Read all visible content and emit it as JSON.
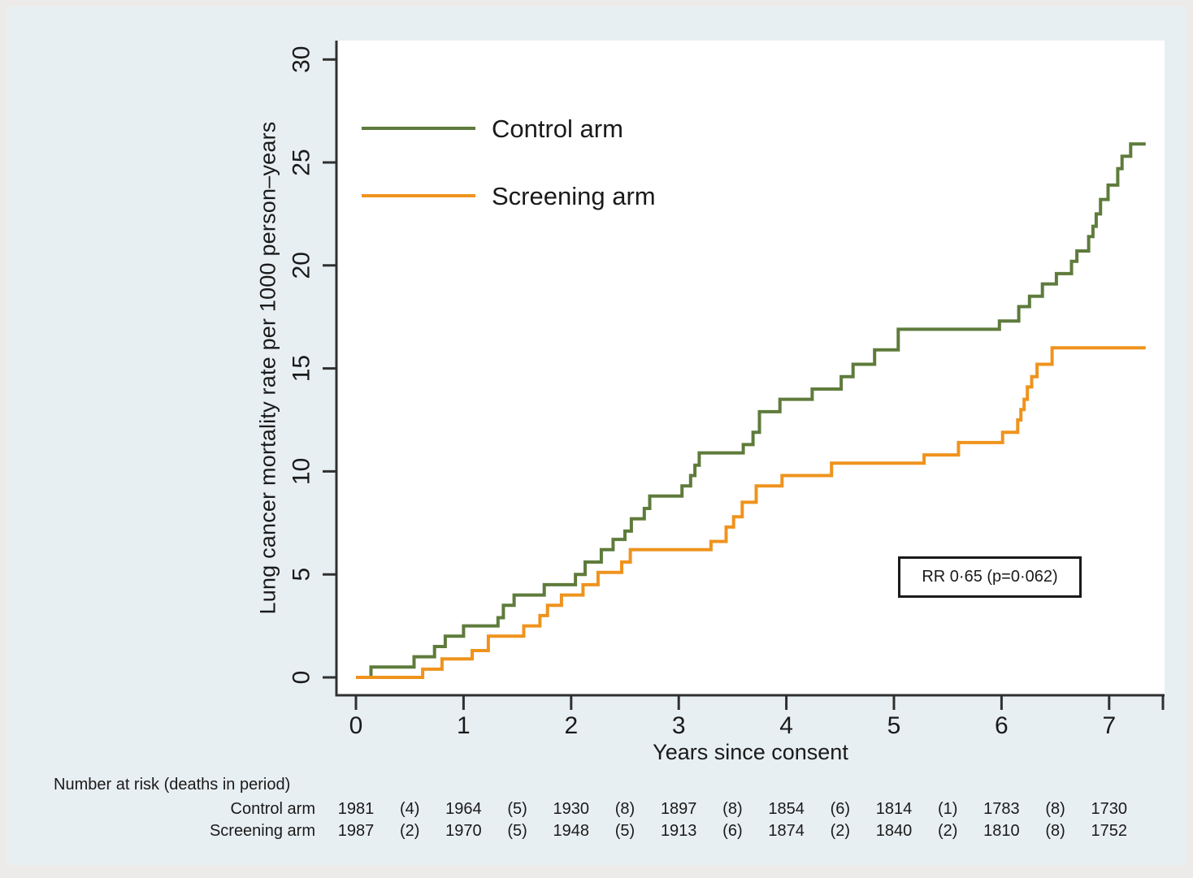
{
  "chart_data": {
    "type": "line",
    "subtype": "step-function cumulative mortality (Kaplan-Meier style)",
    "title": "",
    "xlabel": "Years since consent",
    "ylabel": "Lung cancer mortality rate per 1000 person–years",
    "xlim": [
      0,
      7.5
    ],
    "ylim": [
      0,
      30
    ],
    "xticks": [
      "0",
      "1",
      "2",
      "3",
      "4",
      "5",
      "6",
      "7"
    ],
    "xtick_years": [
      0,
      1,
      2,
      3,
      4,
      5,
      6,
      7
    ],
    "extra_unlabeled_xtick": 7.5,
    "yticks": [
      "0",
      "5",
      "10",
      "15",
      "20",
      "25",
      "30"
    ],
    "ytick_values": [
      0,
      5,
      10,
      15,
      20,
      25,
      30
    ],
    "ytick_labels_rotated": true,
    "grid": false,
    "legend_position": "inside top-left",
    "plot_background": "#ffffff",
    "figure_background": "#e8eff2",
    "axis_color": "#303030",
    "series": [
      {
        "name": "Control arm",
        "color": "#5e7b3b",
        "end_year": 7.34,
        "steps": [
          [
            0.0,
            0
          ],
          [
            0.14,
            0.5
          ],
          [
            0.54,
            1.0
          ],
          [
            0.73,
            1.5
          ],
          [
            0.83,
            2.0
          ],
          [
            1.0,
            2.5
          ],
          [
            1.32,
            2.9
          ],
          [
            1.37,
            3.5
          ],
          [
            1.47,
            4.0
          ],
          [
            1.75,
            4.5
          ],
          [
            2.04,
            5.0
          ],
          [
            2.13,
            5.6
          ],
          [
            2.28,
            6.2
          ],
          [
            2.39,
            6.7
          ],
          [
            2.5,
            7.1
          ],
          [
            2.56,
            7.7
          ],
          [
            2.68,
            8.2
          ],
          [
            2.73,
            8.8
          ],
          [
            3.03,
            9.3
          ],
          [
            3.11,
            9.8
          ],
          [
            3.15,
            10.3
          ],
          [
            3.19,
            10.9
          ],
          [
            3.6,
            11.3
          ],
          [
            3.69,
            11.9
          ],
          [
            3.75,
            12.9
          ],
          [
            3.94,
            13.5
          ],
          [
            4.24,
            14.0
          ],
          [
            4.51,
            14.6
          ],
          [
            4.62,
            15.2
          ],
          [
            4.82,
            15.9
          ],
          [
            5.04,
            16.9
          ],
          [
            5.98,
            17.3
          ],
          [
            6.16,
            18.0
          ],
          [
            6.26,
            18.5
          ],
          [
            6.38,
            19.1
          ],
          [
            6.51,
            19.6
          ],
          [
            6.65,
            20.2
          ],
          [
            6.7,
            20.7
          ],
          [
            6.81,
            21.4
          ],
          [
            6.85,
            21.9
          ],
          [
            6.88,
            22.5
          ],
          [
            6.92,
            23.2
          ],
          [
            6.99,
            23.9
          ],
          [
            7.08,
            24.7
          ],
          [
            7.12,
            25.3
          ],
          [
            7.2,
            25.9
          ]
        ]
      },
      {
        "name": "Screening arm",
        "color": "#ef931d",
        "end_year": 7.34,
        "steps": [
          [
            0.0,
            0
          ],
          [
            0.62,
            0.4
          ],
          [
            0.8,
            0.9
          ],
          [
            1.08,
            1.3
          ],
          [
            1.23,
            2.0
          ],
          [
            1.56,
            2.5
          ],
          [
            1.71,
            3.0
          ],
          [
            1.78,
            3.5
          ],
          [
            1.91,
            4.0
          ],
          [
            2.11,
            4.5
          ],
          [
            2.25,
            5.1
          ],
          [
            2.47,
            5.6
          ],
          [
            2.55,
            6.2
          ],
          [
            3.3,
            6.6
          ],
          [
            3.44,
            7.3
          ],
          [
            3.51,
            7.8
          ],
          [
            3.59,
            8.5
          ],
          [
            3.72,
            9.3
          ],
          [
            3.96,
            9.8
          ],
          [
            4.42,
            10.4
          ],
          [
            5.28,
            10.8
          ],
          [
            5.6,
            11.4
          ],
          [
            6.01,
            11.9
          ],
          [
            6.15,
            12.5
          ],
          [
            6.18,
            13.0
          ],
          [
            6.21,
            13.5
          ],
          [
            6.24,
            14.1
          ],
          [
            6.28,
            14.6
          ],
          [
            6.33,
            15.2
          ],
          [
            6.47,
            16.0
          ]
        ]
      }
    ]
  },
  "annotation": {
    "text": "RR 0·65 (p=0·062)"
  },
  "risk_table": {
    "header": "Number at risk (deaths in period)",
    "column_years": [
      0,
      0.5,
      1,
      1.5,
      2,
      2.5,
      3,
      3.5,
      4,
      4.5,
      5,
      5.5,
      6,
      6.5,
      7
    ],
    "rows": [
      {
        "label": "Control arm",
        "values": [
          "1981",
          "(4)",
          "1964",
          "(5)",
          "1930",
          "(8)",
          "1897",
          "(8)",
          "1854",
          "(6)",
          "1814",
          "(1)",
          "1783",
          "(8)",
          "1730"
        ]
      },
      {
        "label": "Screening arm",
        "values": [
          "1987",
          "(2)",
          "1970",
          "(5)",
          "1948",
          "(5)",
          "1913",
          "(6)",
          "1874",
          "(2)",
          "1840",
          "(2)",
          "1810",
          "(8)",
          "1752"
        ]
      }
    ]
  }
}
